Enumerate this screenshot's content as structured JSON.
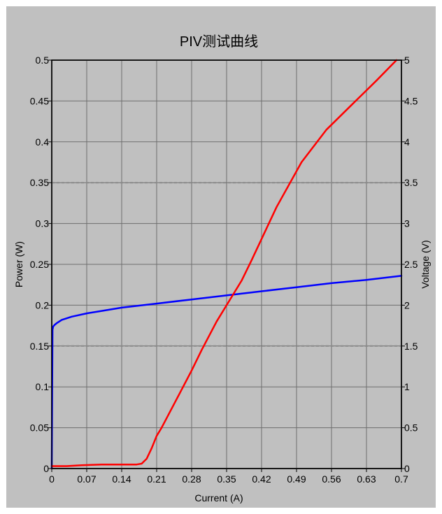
{
  "chart_data": {
    "type": "line",
    "title": "PIV测试曲线",
    "xlabel": "Current (A)",
    "ylabel_left": "Power (W)",
    "ylabel_right": "Voltage (V)",
    "xlim": [
      0,
      0.7
    ],
    "ylim_left": [
      0,
      0.5
    ],
    "ylim_right": [
      0,
      5
    ],
    "x_ticks": [
      "0",
      "0.07",
      "0.14",
      "0.21",
      "0.28",
      "0.35",
      "0.42",
      "0.49",
      "0.56",
      "0.63",
      "0.7"
    ],
    "y_left_ticks": [
      "0",
      "0.05",
      "0.1",
      "0.15",
      "0.2",
      "0.25",
      "0.3",
      "0.35",
      "0.4",
      "0.45",
      "0.5"
    ],
    "y_right_ticks": [
      "0",
      "0.5",
      "1",
      "1.5",
      "2",
      "2.5",
      "3",
      "3.5",
      "4",
      "4.5",
      "5"
    ],
    "grid": true,
    "dashed_reference_lines_left": [
      0.35,
      0.15
    ],
    "series": [
      {
        "axis": "right",
        "color": "#0000ff",
        "x": [
          0,
          0.0015,
          0.003,
          0.006,
          0.01,
          0.02,
          0.04,
          0.07,
          0.1,
          0.14,
          0.21,
          0.28,
          0.35,
          0.42,
          0.49,
          0.56,
          0.63,
          0.7
        ],
        "y": [
          0,
          1.7,
          1.74,
          1.76,
          1.78,
          1.82,
          1.86,
          1.9,
          1.93,
          1.97,
          2.02,
          2.07,
          2.12,
          2.17,
          2.22,
          2.27,
          2.31,
          2.36
        ]
      },
      {
        "axis": "left",
        "color": "#ff0000",
        "x": [
          0,
          0.01,
          0.03,
          0.06,
          0.1,
          0.14,
          0.17,
          0.18,
          0.19,
          0.2,
          0.21,
          0.22,
          0.25,
          0.28,
          0.3,
          0.33,
          0.35,
          0.38,
          0.4,
          0.45,
          0.5,
          0.55,
          0.6,
          0.65,
          0.69
        ],
        "y": [
          0.003,
          0.003,
          0.003,
          0.004,
          0.005,
          0.005,
          0.005,
          0.006,
          0.012,
          0.025,
          0.04,
          0.05,
          0.085,
          0.12,
          0.145,
          0.18,
          0.2,
          0.23,
          0.255,
          0.32,
          0.375,
          0.415,
          0.445,
          0.475,
          0.5
        ]
      }
    ]
  }
}
